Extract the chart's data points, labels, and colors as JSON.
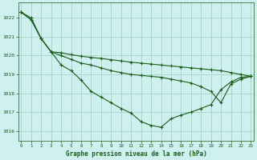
{
  "title": "Graphe pression niveau de la mer (hPa)",
  "background_color": "#cef0ee",
  "grid_color": "#a8d8cc",
  "line_color": "#1a5c1a",
  "xlim": [
    -0.3,
    23.3
  ],
  "ylim": [
    1015.5,
    1022.8
  ],
  "yticks": [
    1016,
    1017,
    1018,
    1019,
    1020,
    1021,
    1022
  ],
  "xticks": [
    0,
    1,
    2,
    3,
    4,
    5,
    6,
    7,
    8,
    9,
    10,
    11,
    12,
    13,
    14,
    15,
    16,
    17,
    18,
    19,
    20,
    21,
    22,
    23
  ],
  "s0": [
    1022.3,
    1022.0,
    1020.9,
    1020.2,
    1019.5,
    1019.2,
    1018.7,
    1018.1,
    1017.8,
    1017.5,
    1017.2,
    1016.95,
    1016.5,
    1016.3,
    1016.2,
    1016.65,
    1016.85,
    1017.0,
    1017.2,
    1017.4,
    1018.2,
    1018.6,
    1018.85,
    1018.9
  ],
  "s1": [
    1022.3,
    1021.9,
    1020.9,
    1020.2,
    1020.0,
    1019.8,
    1019.6,
    1019.5,
    1019.35,
    1019.2,
    1019.1,
    1019.0,
    1018.95,
    1018.9,
    1018.85,
    1018.75,
    1018.65,
    1018.55,
    1018.35,
    1018.1,
    1017.5,
    1018.5,
    1018.75,
    1018.9
  ],
  "s2": [
    1022.3,
    1021.9,
    1020.9,
    1020.2,
    1020.15,
    1020.05,
    1019.97,
    1019.9,
    1019.85,
    1019.78,
    1019.72,
    1019.65,
    1019.6,
    1019.55,
    1019.5,
    1019.45,
    1019.4,
    1019.35,
    1019.3,
    1019.25,
    1019.2,
    1019.1,
    1019.0,
    1018.9
  ]
}
